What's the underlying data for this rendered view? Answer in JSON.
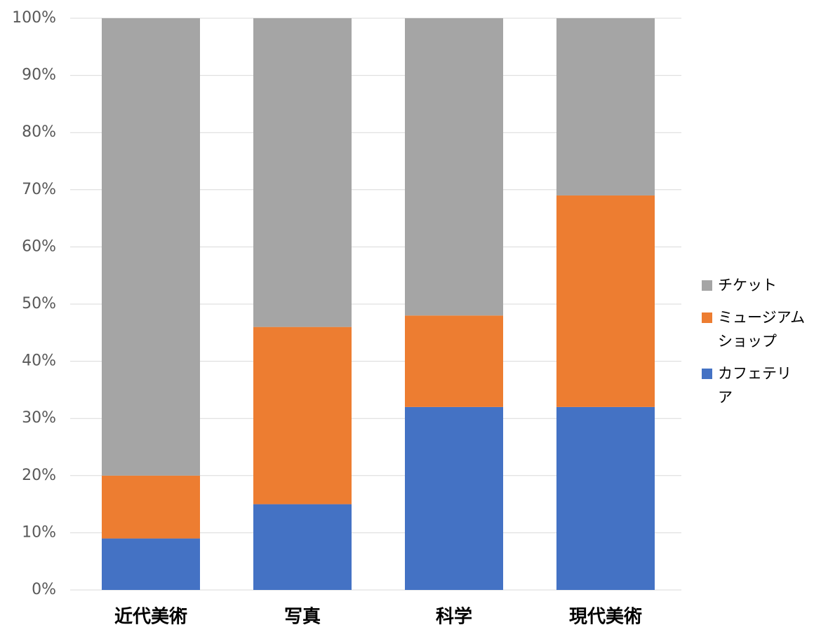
{
  "chart_data": {
    "type": "stacked-bar-100",
    "categories": [
      "近代美術",
      "写真",
      "科学",
      "現代美術"
    ],
    "series": [
      {
        "name": "カフェテリア",
        "color": "#4472c4",
        "values": [
          9,
          15,
          32,
          32
        ]
      },
      {
        "name": "ミュージアムショップ",
        "color": "#ed7d31",
        "values": [
          11,
          31,
          16,
          37
        ]
      },
      {
        "name": "チケット",
        "color": "#a5a5a5",
        "values": [
          80,
          54,
          52,
          31
        ]
      }
    ],
    "ylim": [
      0,
      100
    ],
    "yticks": [
      {
        "value": 0,
        "label": "0%"
      },
      {
        "value": 10,
        "label": "10%"
      },
      {
        "value": 20,
        "label": "20%"
      },
      {
        "value": 30,
        "label": "30%"
      },
      {
        "value": 40,
        "label": "40%"
      },
      {
        "value": 50,
        "label": "50%"
      },
      {
        "value": 60,
        "label": "60%"
      },
      {
        "value": 70,
        "label": "70%"
      },
      {
        "value": 80,
        "label": "80%"
      },
      {
        "value": 90,
        "label": "90%"
      },
      {
        "value": 100,
        "label": "100%"
      }
    ],
    "grid": true,
    "legend": "right"
  }
}
